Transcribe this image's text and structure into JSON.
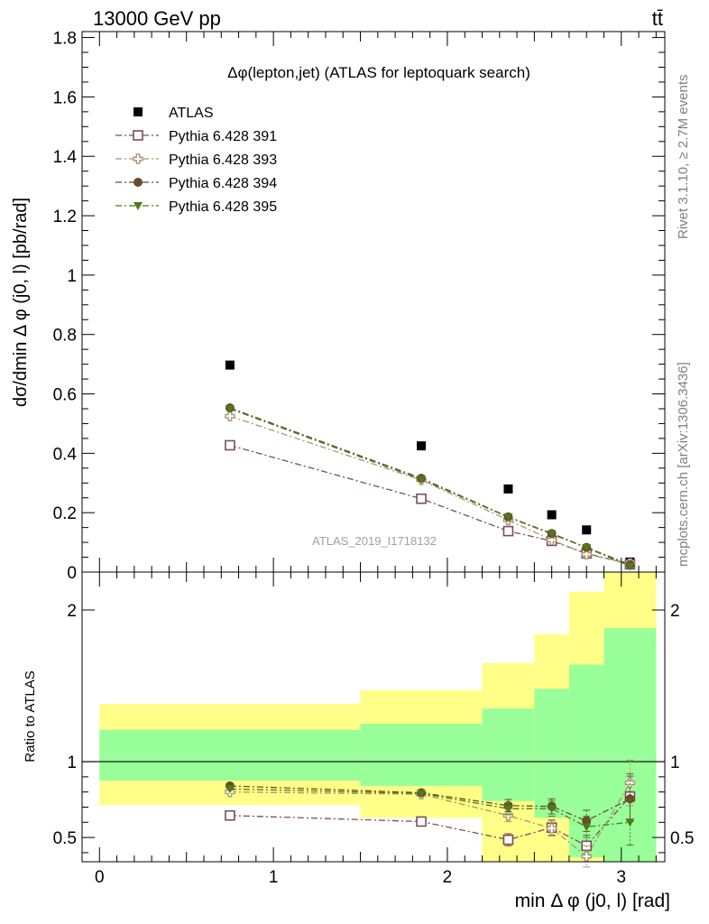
{
  "header": {
    "left": "13000 GeV pp",
    "right": "tt̄"
  },
  "side_labels": {
    "top": "Rivet 3.1.10, ≥ 2.7M events",
    "bottom": "mcplots.cern.ch [arXiv:1306.3436]"
  },
  "colors": {
    "data": "#000000",
    "s391": "#7a4d5e",
    "s393": "#a89770",
    "s394": "#6b4a2c",
    "s395": "#4f7a1a",
    "band_inner": "#99ff99",
    "band_outer": "#ffff88"
  },
  "chart_data": [
    {
      "type": "scatter",
      "title": "Δφ(lepton,jet) (ATLAS for leptoquark search)",
      "watermark": "ATLAS_2019_I1718132",
      "ylabel": "dσ/dmin Δ φ (j0, l) [pb/rad]",
      "xlabel": "",
      "xlim": [
        -0.1,
        3.25
      ],
      "ylim": [
        0,
        1.82
      ],
      "yticks": [
        "0",
        "0.2",
        "0.4",
        "0.6",
        "0.8",
        "1",
        "1.2",
        "1.4",
        "1.6",
        "1.8"
      ],
      "legend_position": "top-left",
      "x": [
        0.75,
        1.85,
        2.35,
        2.6,
        2.8,
        3.05
      ],
      "series": [
        {
          "name": "ATLAS",
          "key": "data",
          "marker": "filled-square",
          "values": [
            0.697,
            0.425,
            0.28,
            0.193,
            0.142,
            0.034
          ]
        },
        {
          "name": "Pythia 6.428 391",
          "key": "s391",
          "marker": "open-square",
          "values": [
            0.427,
            0.247,
            0.138,
            0.105,
            0.063,
            0.026
          ]
        },
        {
          "name": "Pythia 6.428 393",
          "key": "s393",
          "marker": "open-cross",
          "values": [
            0.525,
            0.31,
            0.175,
            0.108,
            0.06,
            0.029
          ]
        },
        {
          "name": "Pythia 6.428 394",
          "key": "s394",
          "marker": "filled-circle",
          "values": [
            0.553,
            0.316,
            0.186,
            0.13,
            0.083,
            0.025
          ]
        },
        {
          "name": "Pythia 6.428 395",
          "key": "s395",
          "marker": "filled-triangle-down",
          "values": [
            0.55,
            0.312,
            0.185,
            0.128,
            0.082,
            0.02
          ]
        }
      ]
    },
    {
      "type": "scatter",
      "title": "",
      "ylabel": "Ratio to ATLAS",
      "xlabel": "min Δ φ (j0, l) [rad]",
      "xlim": [
        -0.1,
        3.25
      ],
      "ylim": [
        0.34,
        2.25
      ],
      "yticks": [
        "0.5",
        "1",
        "2"
      ],
      "xticks": [
        "0",
        "1",
        "2",
        "3"
      ],
      "reference_line": 1,
      "uncertainty_bands": {
        "edges": [
          0,
          1.5,
          2.2,
          2.5,
          2.7,
          2.9,
          3.2
        ],
        "inner_low": [
          0.875,
          0.84,
          0.74,
          0.63,
          0.37,
          0.34
        ],
        "inner_high": [
          1.21,
          1.25,
          1.35,
          1.48,
          1.64,
          1.88
        ],
        "outer_low": [
          0.715,
          0.63,
          0.34,
          0.34,
          0.34,
          0.34
        ],
        "outer_high": [
          1.38,
          1.47,
          1.65,
          1.84,
          2.12,
          2.25
        ]
      },
      "x": [
        0.75,
        1.85,
        2.35,
        2.6,
        2.8,
        3.05
      ],
      "series": [
        {
          "name": "Pythia 6.428 391",
          "key": "s391",
          "marker": "open-square",
          "values": [
            0.645,
            0.605,
            0.485,
            0.565,
            0.445,
            0.77
          ],
          "errors": [
            0.01,
            0.015,
            0.04,
            0.05,
            0.07,
            0.15
          ]
        },
        {
          "name": "Pythia 6.428 393",
          "key": "s393",
          "marker": "open-cross",
          "values": [
            0.8,
            0.785,
            0.645,
            0.56,
            0.375,
            0.86
          ],
          "errors": [
            0.01,
            0.015,
            0.04,
            0.05,
            0.07,
            0.15
          ]
        },
        {
          "name": "Pythia 6.428 394",
          "key": "s394",
          "marker": "filled-circle",
          "values": [
            0.84,
            0.795,
            0.71,
            0.705,
            0.61,
            0.755
          ],
          "errors": [
            0.01,
            0.015,
            0.04,
            0.05,
            0.07,
            0.15
          ]
        },
        {
          "name": "Pythia 6.428 395",
          "key": "s395",
          "marker": "filled-triangle-down",
          "values": [
            0.82,
            0.79,
            0.69,
            0.69,
            0.57,
            0.6
          ],
          "errors": [
            0.01,
            0.015,
            0.04,
            0.05,
            0.07,
            0.15
          ]
        }
      ]
    }
  ]
}
